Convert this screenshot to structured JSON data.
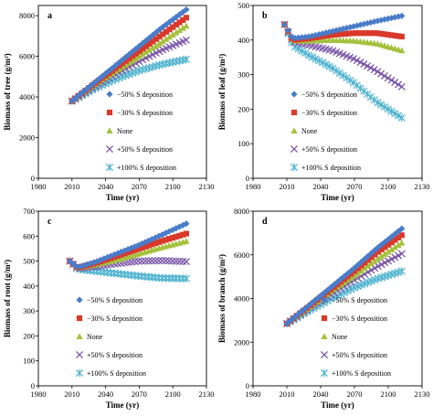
{
  "series_style": [
    {
      "marker": "diamond",
      "color": "#4a7cc9"
    },
    {
      "marker": "square",
      "color": "#d9392b"
    },
    {
      "marker": "triangle",
      "color": "#a4c13c"
    },
    {
      "marker": "x",
      "color": "#7b58a8"
    },
    {
      "marker": "asterisk",
      "color": "#4fb3cf"
    }
  ],
  "chart_data": [
    {
      "type": "scatter",
      "panel_label": "a",
      "xlabel": "Time (yr)",
      "ylabel": "Biomass of tree (g/m²)",
      "xlim": [
        1980,
        2130
      ],
      "ylim": [
        0,
        8500
      ],
      "xticks": [
        "1980",
        "2010",
        "2040",
        "2070",
        "2100",
        "2130"
      ],
      "yticks": [
        {
          "v": 0,
          "label": "0"
        },
        {
          "v": 2000,
          "label": "2000"
        },
        {
          "v": 4000,
          "label": "4000"
        },
        {
          "v": 6000,
          "label": "6000"
        },
        {
          "v": 8000,
          "label": "8000"
        }
      ],
      "legend_position": "lower-right",
      "series": [
        {
          "name": "−50% S deposition",
          "x": [
            2010,
            2030,
            2050,
            2070,
            2090,
            2112
          ],
          "y": [
            3800,
            4700,
            5600,
            6500,
            7400,
            8300
          ]
        },
        {
          "name": "−30% S deposition",
          "x": [
            2010,
            2030,
            2050,
            2070,
            2090,
            2112
          ],
          "y": [
            3800,
            4650,
            5450,
            6250,
            7050,
            7900
          ]
        },
        {
          "name": "None",
          "x": [
            2010,
            2030,
            2050,
            2070,
            2090,
            2112
          ],
          "y": [
            3800,
            4600,
            5300,
            6000,
            6700,
            7500
          ]
        },
        {
          "name": "+50% S deposition",
          "x": [
            2010,
            2030,
            2050,
            2070,
            2090,
            2112
          ],
          "y": [
            3800,
            4500,
            5150,
            5750,
            6300,
            6800
          ]
        },
        {
          "name": "+100% S deposition",
          "x": [
            2010,
            2030,
            2050,
            2070,
            2090,
            2112
          ],
          "y": [
            3800,
            4400,
            4900,
            5300,
            5600,
            5850
          ]
        }
      ]
    },
    {
      "type": "scatter",
      "panel_label": "b",
      "xlabel": "Time (yr)",
      "ylabel": "Biomass of leaf (g/m²)",
      "xlim": [
        1980,
        2130
      ],
      "ylim": [
        0,
        500
      ],
      "xticks": [
        "1980",
        "2010",
        "2040",
        "2070",
        "2100",
        "2130"
      ],
      "yticks": [
        {
          "v": 0,
          "label": "0"
        },
        {
          "v": 100,
          "label": "100"
        },
        {
          "v": 200,
          "label": "200"
        },
        {
          "v": 300,
          "label": "300"
        },
        {
          "v": 400,
          "label": "400"
        },
        {
          "v": 500,
          "label": "500"
        }
      ],
      "legend_position": "lower-left",
      "series": [
        {
          "name": "−50% S deposition",
          "x": [
            2008,
            2015,
            2030,
            2050,
            2070,
            2090,
            2112
          ],
          "y": [
            445,
            405,
            410,
            425,
            440,
            455,
            470
          ]
        },
        {
          "name": "−30% S deposition",
          "x": [
            2008,
            2015,
            2030,
            2050,
            2070,
            2090,
            2112
          ],
          "y": [
            445,
            400,
            405,
            415,
            420,
            420,
            410
          ]
        },
        {
          "name": "None",
          "x": [
            2008,
            2015,
            2030,
            2050,
            2070,
            2090,
            2112
          ],
          "y": [
            445,
            398,
            398,
            400,
            398,
            390,
            370
          ]
        },
        {
          "name": "+50% S deposition",
          "x": [
            2008,
            2015,
            2030,
            2050,
            2070,
            2090,
            2112
          ],
          "y": [
            445,
            395,
            385,
            370,
            345,
            310,
            265
          ]
        },
        {
          "name": "+100% S deposition",
          "x": [
            2008,
            2015,
            2030,
            2050,
            2070,
            2090,
            2112
          ],
          "y": [
            445,
            385,
            355,
            320,
            275,
            220,
            175
          ]
        }
      ]
    },
    {
      "type": "scatter",
      "panel_label": "c",
      "xlabel": "Time (yr)",
      "ylabel": "Biomass of root (g/m²)",
      "xlim": [
        1980,
        2130
      ],
      "ylim": [
        0,
        700
      ],
      "xticks": [
        "1980",
        "2010",
        "2040",
        "2070",
        "2100",
        "2130"
      ],
      "yticks": [
        {
          "v": 0,
          "label": "0"
        },
        {
          "v": 100,
          "label": "100"
        },
        {
          "v": 200,
          "label": "200"
        },
        {
          "v": 300,
          "label": "300"
        },
        {
          "v": 400,
          "label": "400"
        },
        {
          "v": 500,
          "label": "500"
        },
        {
          "v": 600,
          "label": "600"
        },
        {
          "v": 700,
          "label": "700"
        }
      ],
      "legend_position": "lower-left",
      "series": [
        {
          "name": "−50% S deposition",
          "x": [
            2008,
            2015,
            2030,
            2050,
            2070,
            2090,
            2112
          ],
          "y": [
            500,
            475,
            495,
            530,
            565,
            605,
            650
          ]
        },
        {
          "name": "−30% S deposition",
          "x": [
            2008,
            2015,
            2030,
            2050,
            2070,
            2090,
            2112
          ],
          "y": [
            500,
            473,
            490,
            520,
            550,
            580,
            610
          ]
        },
        {
          "name": "None",
          "x": [
            2008,
            2015,
            2030,
            2050,
            2070,
            2090,
            2112
          ],
          "y": [
            500,
            472,
            485,
            505,
            530,
            555,
            580
          ]
        },
        {
          "name": "+50% S deposition",
          "x": [
            2008,
            2015,
            2030,
            2050,
            2070,
            2090,
            2112
          ],
          "y": [
            500,
            470,
            478,
            490,
            500,
            502,
            498
          ]
        },
        {
          "name": "+100% S deposition",
          "x": [
            2008,
            2015,
            2030,
            2050,
            2070,
            2090,
            2112
          ],
          "y": [
            500,
            468,
            460,
            450,
            440,
            432,
            430
          ]
        }
      ]
    },
    {
      "type": "scatter",
      "panel_label": "d",
      "xlabel": "Time (yr)",
      "ylabel": "Biomass of branch (g/m²)",
      "xlim": [
        1980,
        2130
      ],
      "ylim": [
        0,
        8000
      ],
      "xticks": [
        "1980",
        "2010",
        "2040",
        "2070",
        "2100",
        "2130"
      ],
      "yticks": [
        {
          "v": 0,
          "label": "0"
        },
        {
          "v": 2000,
          "label": "2000"
        },
        {
          "v": 4000,
          "label": "4000"
        },
        {
          "v": 6000,
          "label": "6000"
        },
        {
          "v": 8000,
          "label": "8000"
        }
      ],
      "legend_position": "lower-right",
      "series": [
        {
          "name": "−50% S deposition",
          "x": [
            2010,
            2030,
            2050,
            2070,
            2090,
            2112
          ],
          "y": [
            2850,
            3700,
            4550,
            5400,
            6300,
            7200
          ]
        },
        {
          "name": "−30% S deposition",
          "x": [
            2010,
            2030,
            2050,
            2070,
            2090,
            2112
          ],
          "y": [
            2850,
            3650,
            4450,
            5250,
            6100,
            6900
          ]
        },
        {
          "name": "None",
          "x": [
            2010,
            2030,
            2050,
            2070,
            2090,
            2112
          ],
          "y": [
            2850,
            3600,
            4350,
            5050,
            5800,
            6550
          ]
        },
        {
          "name": "+50% S deposition",
          "x": [
            2010,
            2030,
            2050,
            2070,
            2090,
            2112
          ],
          "y": [
            2850,
            3550,
            4200,
            4850,
            5450,
            6050
          ]
        },
        {
          "name": "+100% S deposition",
          "x": [
            2010,
            2030,
            2050,
            2070,
            2090,
            2112
          ],
          "y": [
            2850,
            3450,
            4000,
            4500,
            4900,
            5250
          ]
        }
      ]
    }
  ]
}
